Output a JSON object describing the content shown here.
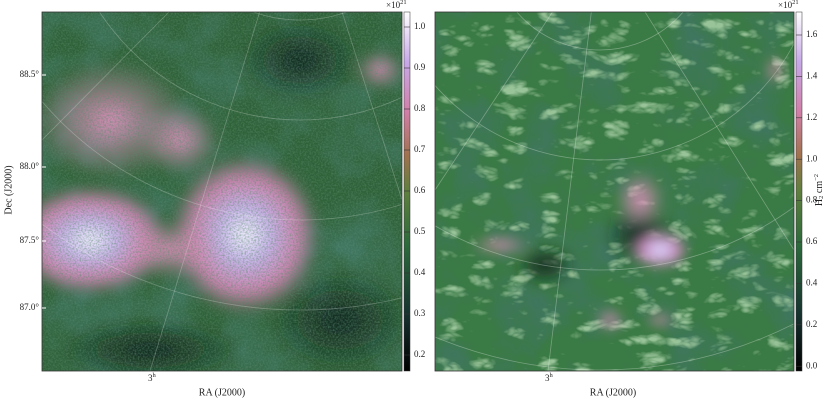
{
  "left_panel": {
    "y_axis_label": "Dec (J2000)",
    "y_ticks": [
      "88.5°",
      "88.0°",
      "87.5°",
      "87.0°"
    ],
    "x_axis_label": "RA (J2000)",
    "x_tick": {
      "base": "3",
      "sup": "h"
    },
    "colorbar": {
      "multiplier": {
        "base": "×10",
        "sup": "21"
      },
      "ticks": [
        "1.0",
        "0.9",
        "0.8",
        "0.7",
        "0.6",
        "0.5",
        "0.4",
        "0.3",
        "0.2"
      ]
    }
  },
  "right_panel": {
    "x_axis_label": "RA (J2000)",
    "x_tick": {
      "base": "3",
      "sup": "h"
    },
    "colorbar": {
      "multiplier": {
        "base": "×10",
        "sup": "21"
      },
      "label": {
        "base": "H",
        "sub": "2",
        "unit": " cm",
        "sup": "−2"
      },
      "ticks": [
        "1.6",
        "1.4",
        "1.2",
        "1.0",
        "0.8",
        "0.6",
        "0.4",
        "0.2",
        "0.0"
      ]
    }
  }
}
